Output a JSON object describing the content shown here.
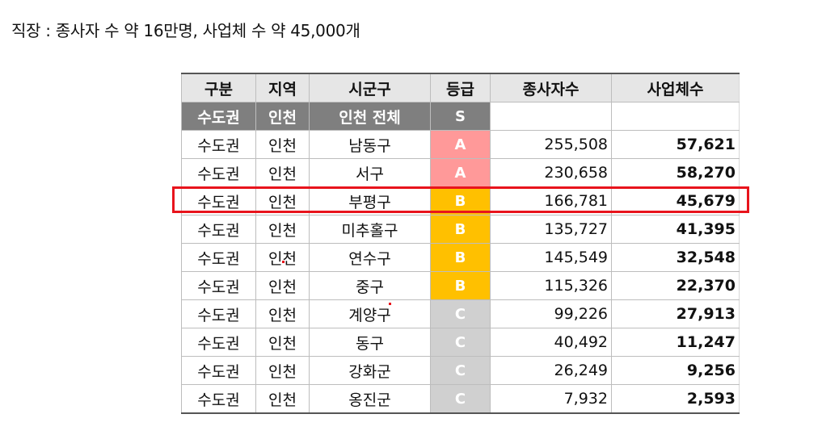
{
  "caption": "직장 : 종사자 수 약 16만명, 사업체 수 약 45,000개",
  "table": {
    "headers": [
      "구분",
      "지역",
      "시군구",
      "등급",
      "종사자수",
      "사업체수"
    ],
    "total_row": {
      "category": "수도권",
      "region": "인천",
      "district": "인천 전체",
      "grade": "S",
      "workers": "",
      "businesses": ""
    },
    "rows": [
      {
        "category": "수도권",
        "region": "인천",
        "district": "남동구",
        "grade": "A",
        "workers": "255,508",
        "businesses": "57,621"
      },
      {
        "category": "수도권",
        "region": "인천",
        "district": "서구",
        "grade": "A",
        "workers": "230,658",
        "businesses": "58,270"
      },
      {
        "category": "수도권",
        "region": "인천",
        "district": "부평구",
        "grade": "B",
        "workers": "166,781",
        "businesses": "45,679"
      },
      {
        "category": "수도권",
        "region": "인천",
        "district": "미추홀구",
        "grade": "B",
        "workers": "135,727",
        "businesses": "41,395"
      },
      {
        "category": "수도권",
        "region": "인천",
        "district": "연수구",
        "grade": "B",
        "workers": "145,549",
        "businesses": "32,548"
      },
      {
        "category": "수도권",
        "region": "인천",
        "district": "중구",
        "grade": "B",
        "workers": "115,326",
        "businesses": "22,370"
      },
      {
        "category": "수도권",
        "region": "인천",
        "district": "계양구",
        "grade": "C",
        "workers": "99,226",
        "businesses": "27,913"
      },
      {
        "category": "수도권",
        "region": "인천",
        "district": "동구",
        "grade": "C",
        "workers": "40,492",
        "businesses": "11,247"
      },
      {
        "category": "수도권",
        "region": "인천",
        "district": "강화군",
        "grade": "C",
        "workers": "26,249",
        "businesses": "9,256"
      },
      {
        "category": "수도권",
        "region": "인천",
        "district": "옹진군",
        "grade": "C",
        "workers": "7,932",
        "businesses": "2,593"
      }
    ],
    "grade_colors": {
      "S": "#e8443a",
      "A": "#ff9999",
      "B": "#ffc000",
      "C": "#d0d0d0"
    },
    "highlight_color": "#e8141c",
    "highlighted_district": "부평구"
  }
}
